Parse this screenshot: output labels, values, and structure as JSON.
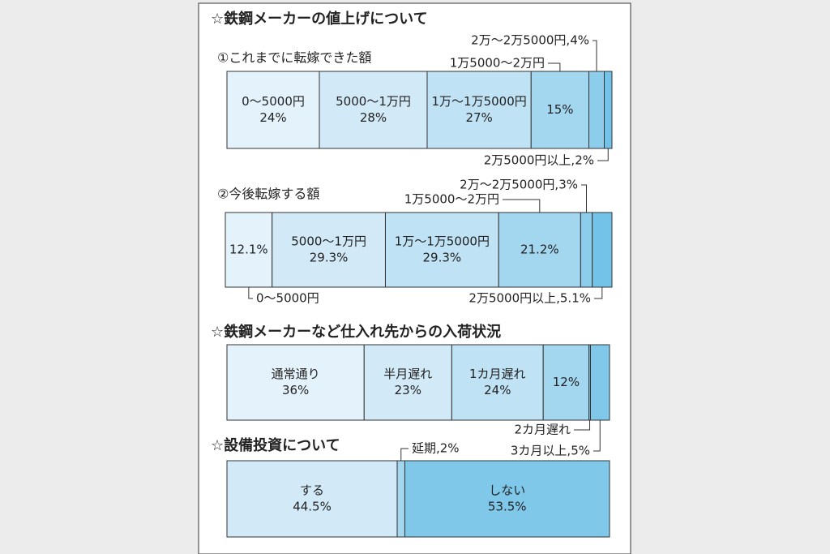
{
  "chart_data": [
    {
      "type": "stacked-bar",
      "heading": "☆鉄鋼メーカーの値上げについて",
      "title": "①これまでに転嫁できた額",
      "categories": [
        "0～5000円",
        "5000～1万円",
        "1万～1万5000円",
        "1万5000～2万円",
        "2万～2万5000円,4%",
        "2万5000円以上,2%"
      ],
      "values": [
        24,
        28,
        27,
        15,
        4,
        2
      ],
      "value_labels": [
        "24%",
        "28%",
        "27%",
        "15%",
        null,
        null
      ],
      "colors": [
        "#e4f3fb",
        "#d2eaf7",
        "#bfe2f4",
        "#a3d6ef",
        "#8ccdec",
        "#73c3e8"
      ]
    },
    {
      "type": "stacked-bar",
      "title": "②今後転嫁する額",
      "categories": [
        "0～5000円",
        "5000～1万円",
        "1万～1万5000円",
        "1万5000～2万円",
        "2万～2万5000円,3%",
        "2万5000円以上,5.1%"
      ],
      "values": [
        12.1,
        29.3,
        29.3,
        21.2,
        3,
        5.1
      ],
      "value_labels": [
        "12.1%",
        "29.3%",
        "29.3%",
        "21.2%",
        null,
        null
      ],
      "colors": [
        "#e4f3fb",
        "#d2eaf7",
        "#bfe2f4",
        "#a3d6ef",
        "#8ccdec",
        "#73c3e8"
      ]
    },
    {
      "type": "stacked-bar",
      "title": "☆鉄鋼メーカーなど仕入れ先からの入荷状況",
      "categories": [
        "通常通り",
        "半月遅れ",
        "1カ月遅れ",
        null,
        "2カ月遅れ",
        "3カ月以上,5%"
      ],
      "values": [
        36,
        23,
        24,
        12,
        0.4,
        5
      ],
      "value_labels": [
        "36%",
        "23%",
        "24%",
        "12%",
        null,
        null
      ],
      "colors": [
        "#e4f3fb",
        "#d2eaf7",
        "#bfe2f4",
        "#a3d6ef",
        "#8ccdec",
        "#7fc8ea"
      ]
    },
    {
      "type": "stacked-bar",
      "title": "☆設備投資について",
      "categories": [
        "する",
        "延期,2%",
        "しない"
      ],
      "values": [
        44.5,
        2,
        53.5
      ],
      "value_labels": [
        "44.5%",
        null,
        "53.5%"
      ],
      "colors": [
        "#d2eaf7",
        "#a3d6ef",
        "#7fc8ea"
      ]
    }
  ]
}
